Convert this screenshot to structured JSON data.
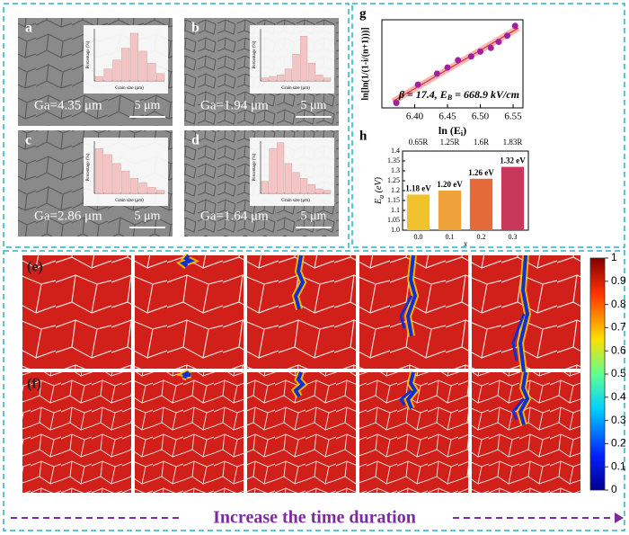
{
  "chart_data": [
    {
      "type": "bar",
      "label": "a",
      "annotation": "Ga=4.35 μm",
      "scale_bar": "5 μm",
      "xlabel": "Grain size (μm)",
      "ylabel": "Percentage (%)",
      "color": "#f3c4c4",
      "categories": [
        null,
        null,
        null,
        null,
        null,
        null,
        null,
        null
      ],
      "values": [
        3,
        8,
        14,
        22,
        32,
        20,
        12,
        5
      ],
      "ylim": [
        0,
        35
      ]
    },
    {
      "type": "bar",
      "label": "b",
      "annotation": "Ga=1.94 μm",
      "scale_bar": "5 μm",
      "xlabel": "Grain size (μm)",
      "ylabel": "Percentage (%)",
      "color": "#f3c4c4",
      "categories": [
        null,
        null,
        null,
        null,
        null,
        null,
        null,
        null,
        null
      ],
      "values": [
        2,
        3,
        4,
        8,
        18,
        30,
        12,
        4,
        2
      ],
      "ylim": [
        0,
        35
      ]
    },
    {
      "type": "bar",
      "label": "c",
      "annotation": "Ga=2.86 μm",
      "scale_bar": "5 μm",
      "xlabel": "Grain size (μm)",
      "ylabel": "Percentage (%)",
      "color": "#f3c4c4",
      "categories": [
        null,
        null,
        null,
        null,
        null,
        null,
        null,
        null
      ],
      "values": [
        30,
        26,
        20,
        15,
        10,
        7,
        4,
        2
      ],
      "ylim": [
        0,
        35
      ]
    },
    {
      "type": "bar",
      "label": "d",
      "annotation": "Ga=1.64 μm",
      "scale_bar": "5 μm",
      "xlabel": "Grain size (μm)",
      "ylabel": "Percentage (%)",
      "color": "#f3c4c4",
      "categories": [
        null,
        null,
        null,
        null,
        null,
        null,
        null,
        null,
        null
      ],
      "values": [
        8,
        30,
        34,
        20,
        14,
        10,
        6,
        3,
        2
      ],
      "ylim": [
        0,
        35
      ]
    },
    {
      "type": "scatter",
      "label": "g",
      "color": "#a020a0",
      "x": [
        6.372,
        6.405,
        6.434,
        6.45,
        6.466,
        6.486,
        6.5,
        6.516,
        6.528,
        6.541,
        6.553
      ],
      "y": [
        -2.3,
        -1.55,
        -1.1,
        -0.85,
        -0.55,
        -0.4,
        -0.2,
        -0.05,
        0.2,
        0.45,
        0.85
      ],
      "xlim": [
        6.35,
        6.565
      ],
      "ylim": [
        -2.5,
        1.1
      ],
      "xticks": [
        {
          "value": 6.4,
          "label": "6.40"
        },
        {
          "value": 6.45,
          "label": "6.45"
        },
        {
          "value": 6.5,
          "label": "6.50"
        },
        {
          "value": 6.55,
          "label": "6.55"
        }
      ],
      "xlabel_parts": [
        "ln (E",
        "i",
        ")"
      ],
      "ylabel": "ln[ln(1/(1-i/(n+1)))]",
      "annotation_parts": [
        "β = 17.4, E",
        "B",
        " = 668.9 kV/cm"
      ]
    },
    {
      "type": "bar",
      "label": "h",
      "categories": [
        "0.0",
        "0.1",
        "0.2",
        "0.3"
      ],
      "top_categories": [
        "0.65R",
        "1.25R",
        "1.6R",
        "1.83R"
      ],
      "xlabel": "x",
      "ylabel_parts": [
        "E",
        "a",
        " (eV)"
      ],
      "values": [
        1.18,
        1.2,
        1.26,
        1.32
      ],
      "value_labels": [
        "1.18 eV",
        "1.20 eV",
        "1.26 eV",
        "1.32 eV"
      ],
      "colors": [
        "#f2c12e",
        "#f0a23a",
        "#e56a3a",
        "#c8385a"
      ],
      "ylim": [
        1,
        1.4
      ],
      "yticks": [
        {
          "value": 1,
          "label": "1.0"
        },
        1.05,
        1.1,
        1.15,
        1.2,
        1.25,
        1.3,
        1.35,
        1.4
      ]
    },
    {
      "type": "colorbar",
      "ylim": [
        0,
        1
      ],
      "yticks": [
        0,
        0.1,
        0.2,
        0.3,
        0.4,
        0.5,
        0.6,
        0.7,
        0.8,
        0.9,
        1
      ]
    }
  ],
  "simulation": {
    "row_labels": [
      "(e)",
      "(f)"
    ]
  },
  "footer": "Increase the time duration"
}
